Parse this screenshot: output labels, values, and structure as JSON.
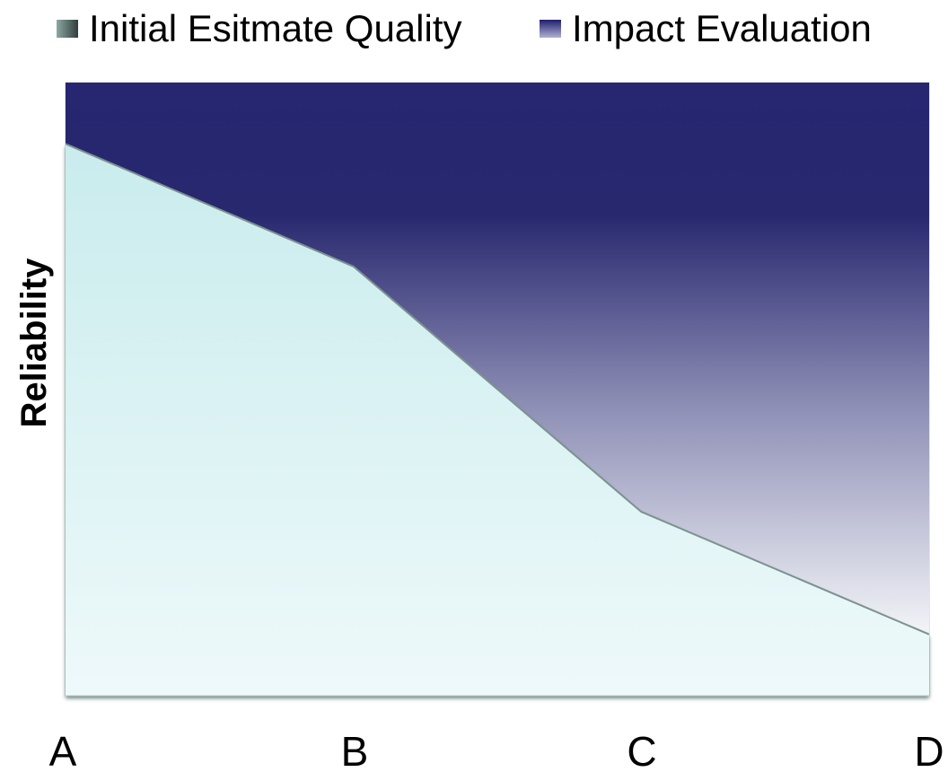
{
  "chart_data": {
    "type": "area",
    "stacked": true,
    "categories": [
      "A",
      "B",
      "C",
      "D"
    ],
    "xlabel": "",
    "ylabel": "Reliability",
    "ylim": [
      0,
      100
    ],
    "grid": false,
    "legend_position": "top",
    "series": [
      {
        "name": "Initial Esitmate Quality",
        "values": [
          90,
          70,
          30,
          10
        ],
        "color": "#cdeef0"
      },
      {
        "name": "Impact Evaluation",
        "values": [
          10,
          30,
          70,
          90
        ],
        "color": "#262671"
      }
    ]
  }
}
